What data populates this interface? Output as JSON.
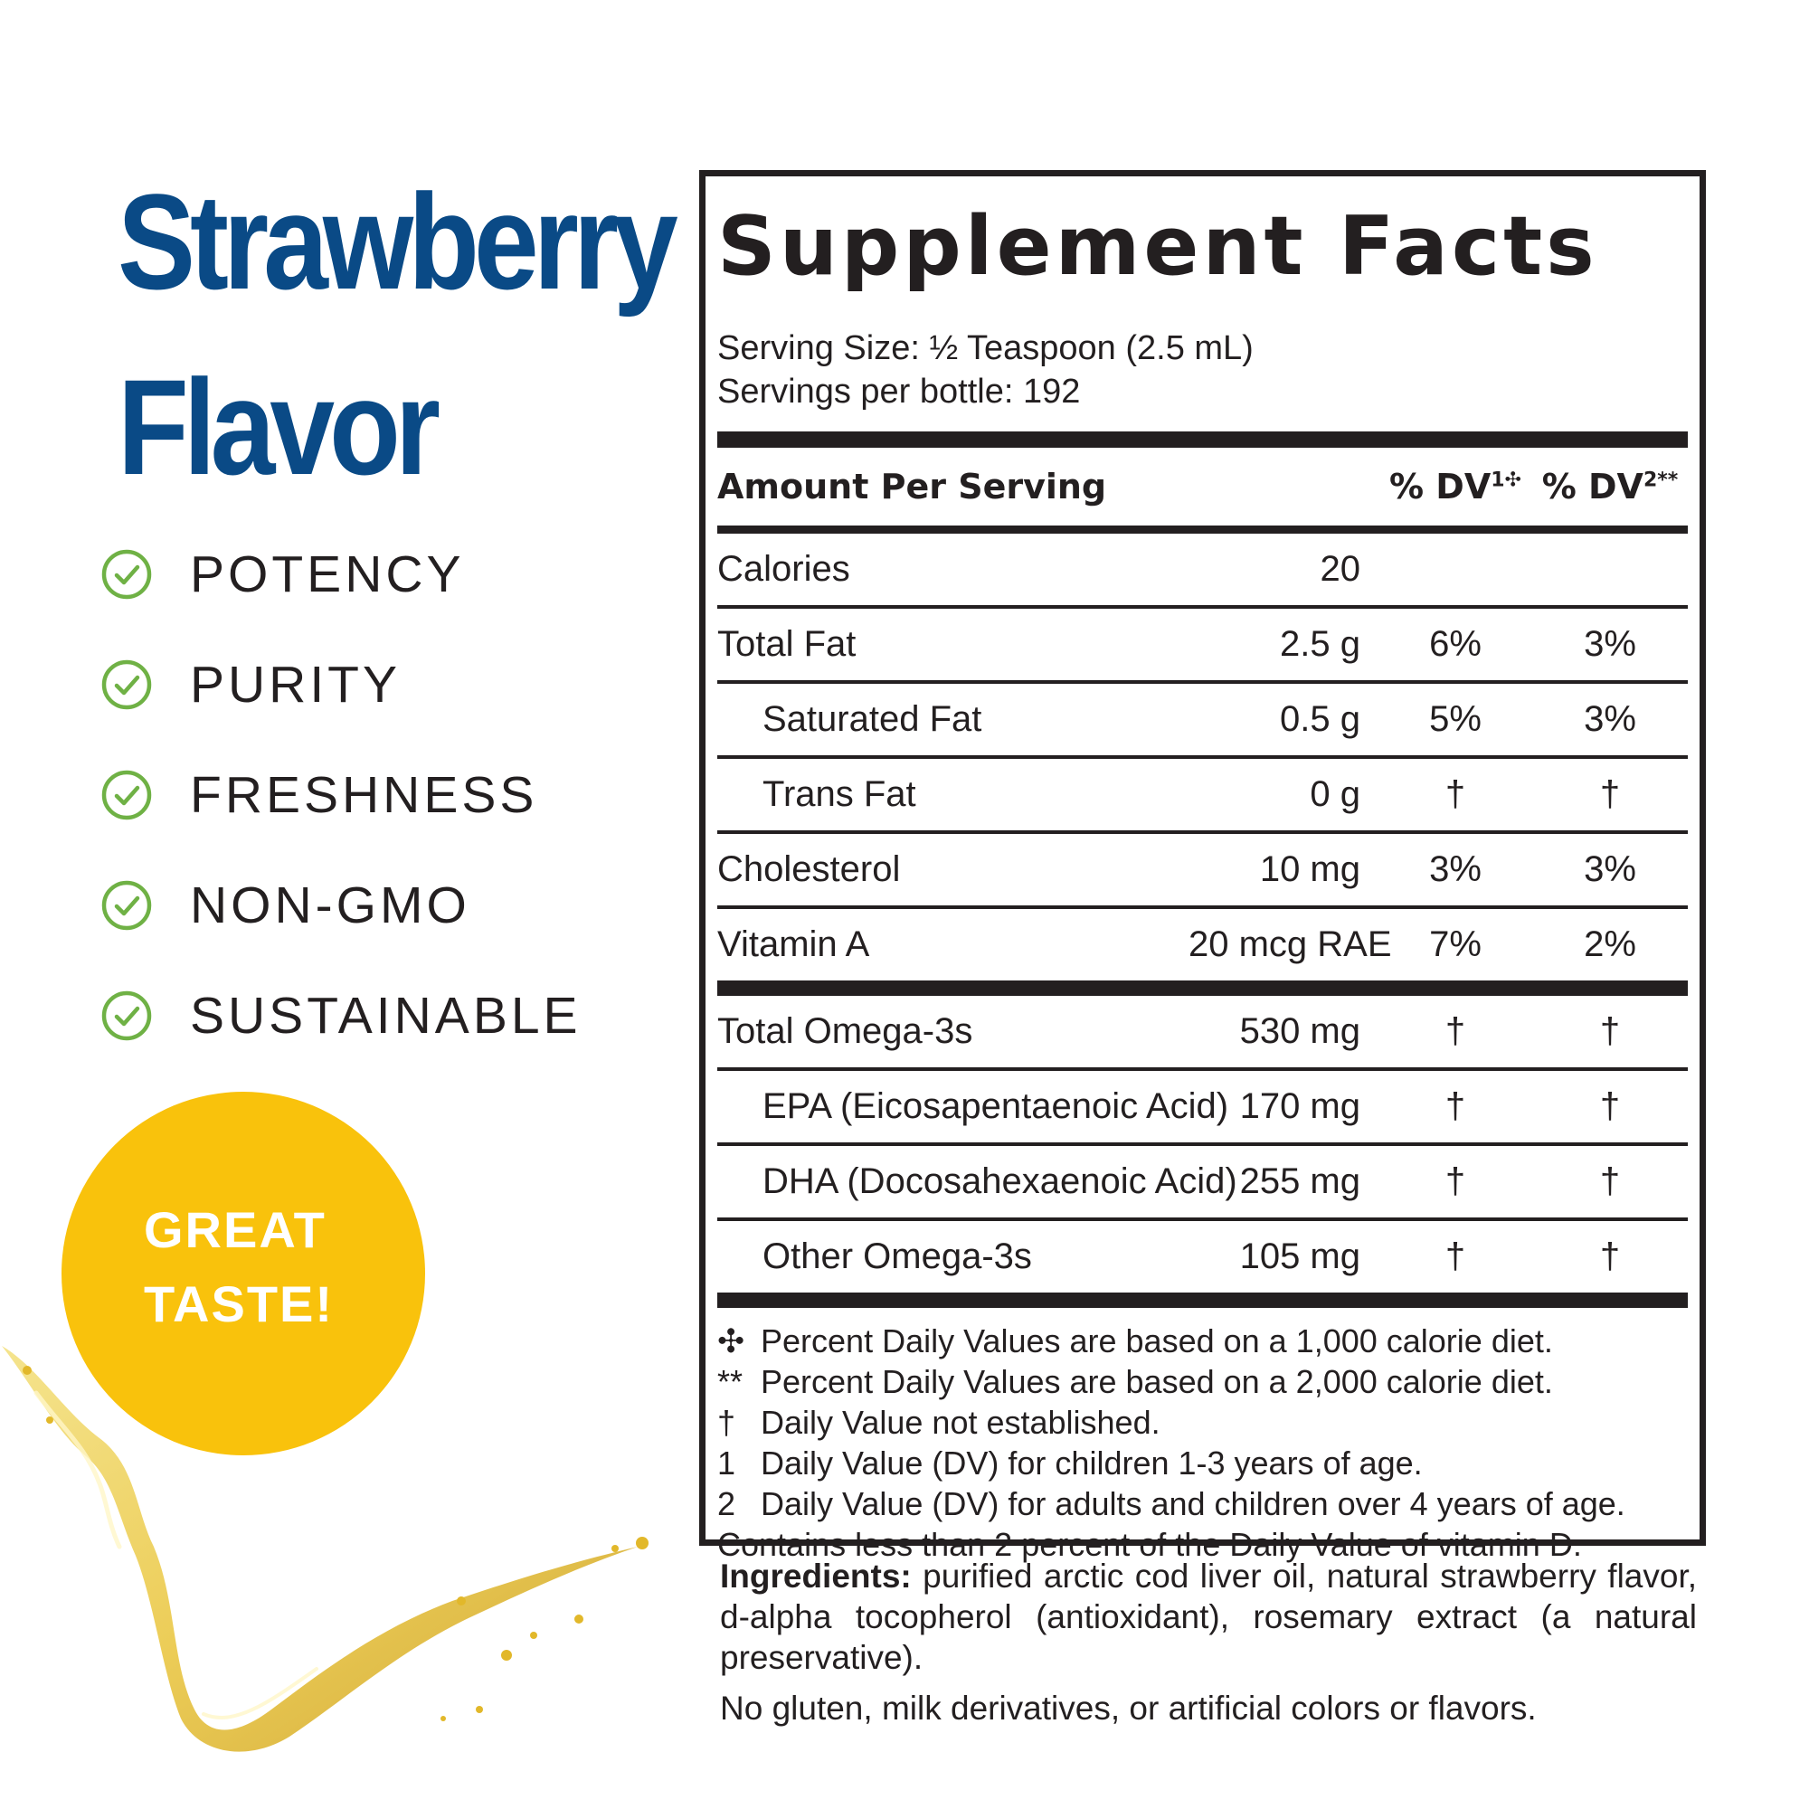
{
  "flavor": {
    "line1": "Strawberry",
    "line2": "Flavor"
  },
  "colors": {
    "title_blue": "#0a4a86",
    "check_green": "#6fb145",
    "badge_yellow": "#f9c20c",
    "text_dark": "#231f20"
  },
  "benefits": [
    {
      "label": "POTENCY",
      "icon": "check-circle-icon"
    },
    {
      "label": "PURITY",
      "icon": "check-circle-icon"
    },
    {
      "label": "FRESHNESS",
      "icon": "check-circle-icon"
    },
    {
      "label": "NON-GMO",
      "icon": "check-circle-icon"
    },
    {
      "label": "SUSTAINABLE",
      "icon": "check-circle-icon"
    }
  ],
  "badge": {
    "line1": "GREAT",
    "line2": "TASTE!"
  },
  "facts": {
    "title": "Supplement Facts",
    "serving_size": "Serving Size: ½ Teaspoon (2.5 mL)",
    "servings_per": "Servings per bottle: 192",
    "header": {
      "amount": "Amount Per Serving",
      "dv1": "% DV",
      "dv1_sup": "1✣",
      "dv2": "% DV",
      "dv2_sup": "2**"
    },
    "rows": [
      {
        "name": "Calories",
        "amount": "20",
        "dv1": "",
        "dv2": ""
      },
      {
        "name": "Total Fat",
        "amount": "2.5 g",
        "dv1": "6%",
        "dv2": "3%"
      },
      {
        "name": "Saturated Fat",
        "amount": "0.5 g",
        "dv1": "5%",
        "dv2": "3%"
      },
      {
        "name": "Trans Fat",
        "amount": "0 g",
        "dv1": "†",
        "dv2": "†"
      },
      {
        "name": "Cholesterol",
        "amount": "10 mg",
        "dv1": "3%",
        "dv2": "3%"
      },
      {
        "name": "Vitamin A",
        "amount": "20 mcg RAE",
        "dv1": "7%",
        "dv2": "2%"
      },
      {
        "name": "Total Omega-3s",
        "amount": "530 mg",
        "dv1": "†",
        "dv2": "†"
      },
      {
        "name": "EPA (Eicosapentaenoic Acid)",
        "amount": "170 mg",
        "dv1": "†",
        "dv2": "†"
      },
      {
        "name": "DHA (Docosahexaenoic Acid)",
        "amount": "255 mg",
        "dv1": "†",
        "dv2": "†"
      },
      {
        "name": "Other Omega-3s",
        "amount": "105 mg",
        "dv1": "†",
        "dv2": "†"
      }
    ],
    "footnotes": [
      {
        "mark": "✣",
        "text": "Percent Daily Values are based on a 1,000 calorie diet."
      },
      {
        "mark": "**",
        "text": "Percent Daily Values are based on a 2,000 calorie diet."
      },
      {
        "mark": "†",
        "text": "Daily Value not established."
      },
      {
        "mark": "1",
        "text": "Daily Value (DV) for children 1-3 years of age."
      },
      {
        "mark": "2",
        "text": "Daily Value (DV) for adults and children over 4 years of age."
      }
    ],
    "vitamin_d_note": "Contains less than 2 percent of the Daily Value of vitamin D."
  },
  "ingredients": {
    "label": "Ingredients:",
    "text": "purified arctic cod liver oil, natural strawberry flavor, d-alpha tocopherol (antioxidant), rosemary extract (a natural preservative).",
    "allergen_note": "No gluten, milk derivatives, or artificial colors or flavors."
  }
}
